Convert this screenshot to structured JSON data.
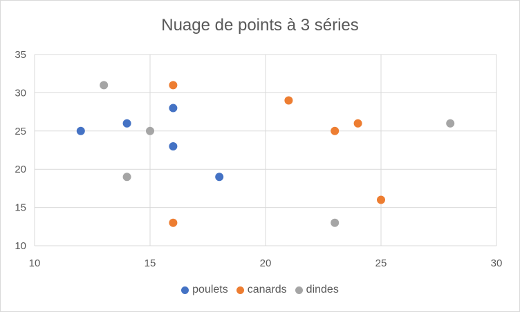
{
  "chart_data": {
    "type": "scatter",
    "title": "Nuage de points à 3 séries",
    "xlabel": "",
    "ylabel": "",
    "xlim": [
      10,
      30
    ],
    "ylim": [
      10,
      35
    ],
    "xticks": [
      10,
      15,
      20,
      25,
      30
    ],
    "yticks": [
      10,
      15,
      20,
      25,
      30,
      35
    ],
    "grid": true,
    "legend_position": "bottom",
    "series": [
      {
        "name": "poulets",
        "color": "#4472c4",
        "points": [
          [
            12,
            25
          ],
          [
            14,
            26
          ],
          [
            16,
            28
          ],
          [
            16,
            23
          ],
          [
            18,
            19
          ]
        ]
      },
      {
        "name": "canards",
        "color": "#ed7d31",
        "points": [
          [
            16,
            31
          ],
          [
            16,
            13
          ],
          [
            21,
            29
          ],
          [
            23,
            25
          ],
          [
            24,
            26
          ],
          [
            25,
            16
          ]
        ]
      },
      {
        "name": "dindes",
        "color": "#a5a5a5",
        "points": [
          [
            13,
            31
          ],
          [
            14,
            19
          ],
          [
            15,
            25
          ],
          [
            23,
            13
          ],
          [
            28,
            26
          ]
        ]
      }
    ]
  }
}
